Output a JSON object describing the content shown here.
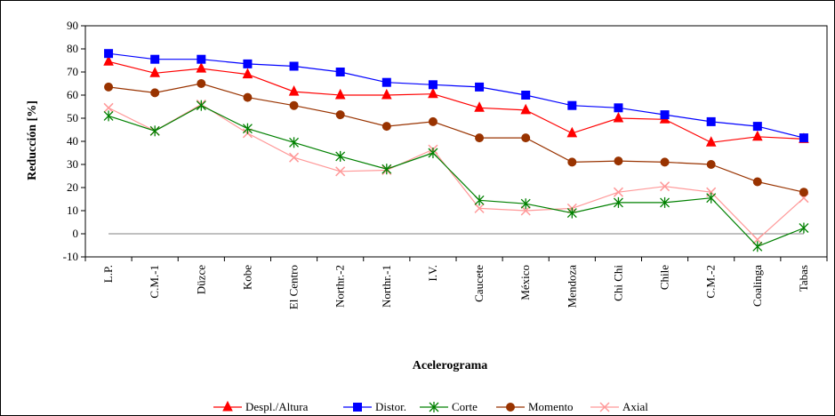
{
  "chart_data": {
    "type": "line",
    "title": "",
    "xlabel": "Acelerograma",
    "ylabel": "Reducción [%]",
    "ylim": [
      -10,
      90
    ],
    "yticks": [
      -10,
      0,
      10,
      20,
      30,
      40,
      50,
      60,
      70,
      80,
      90
    ],
    "grid": false,
    "legend_position": "bottom",
    "categories": [
      "L.P.",
      "C.M.-1",
      "Düzce",
      "Kobe",
      "El Centro",
      "Northr.-2",
      "Northr.-1",
      "I.V.",
      "Caucete",
      "México",
      "Mendoza",
      "Chi Chi",
      "Chile",
      "C.M.-2",
      "Coalinga",
      "Tabas"
    ],
    "series": [
      {
        "name": "Despl./Altura",
        "color": "#ff0000",
        "marker": "triangle",
        "values": [
          74.5,
          69.5,
          71.5,
          69,
          61.5,
          60,
          60,
          60.5,
          54.5,
          53.5,
          43.5,
          50,
          49.5,
          39.5,
          42,
          41
        ]
      },
      {
        "name": "Distor.",
        "color": "#0000ff",
        "marker": "square",
        "values": [
          78,
          75.5,
          75.5,
          73.5,
          72.5,
          70,
          65.5,
          64.5,
          63.5,
          60,
          55.5,
          54.5,
          51.5,
          48.5,
          46.5,
          41.5
        ]
      },
      {
        "name": "Corte",
        "color": "#008000",
        "marker": "asterisk",
        "values": [
          51,
          44.5,
          55.5,
          45.5,
          39.5,
          33.5,
          28,
          35,
          14.5,
          13,
          9,
          13.5,
          13.5,
          15.5,
          -5.5,
          2.5
        ]
      },
      {
        "name": "Momento",
        "color": "#993300",
        "marker": "circle",
        "values": [
          63.5,
          61,
          65,
          59,
          55.5,
          51.5,
          46.5,
          48.5,
          41.5,
          41.5,
          31,
          31.5,
          31,
          30,
          22.5,
          18
        ]
      },
      {
        "name": "Axial",
        "color": "#ff9999",
        "marker": "x",
        "values": [
          54.5,
          44.5,
          56,
          43.5,
          33,
          27,
          27.5,
          36.5,
          11,
          10,
          11,
          18,
          20.5,
          18,
          -2.5,
          15.5
        ]
      }
    ]
  }
}
